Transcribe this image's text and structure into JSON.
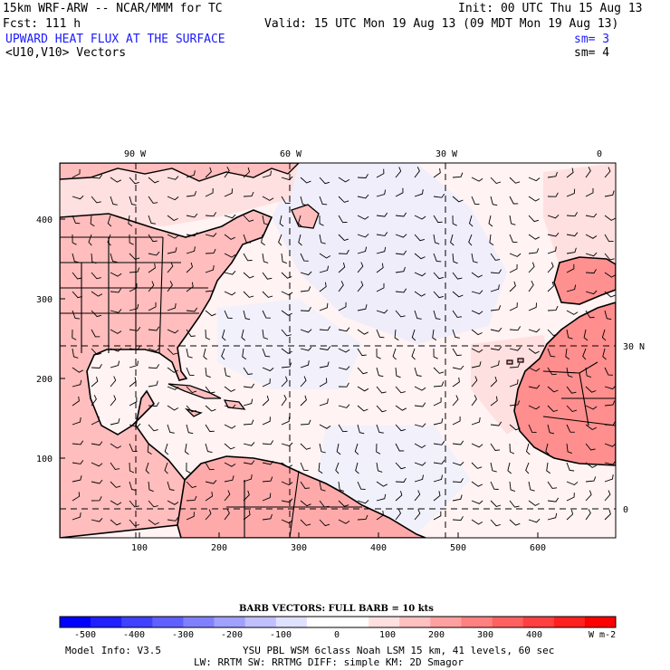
{
  "header": {
    "model_title": "15km WRF-ARW -- NCAR/MMM for TC",
    "init": "Init: 00 UTC Thu 15 Aug 13",
    "forecast": "Fcst:  111 h",
    "valid": "Valid: 15 UTC Mon 19 Aug 13 (09 MDT Mon 19 Aug 13)",
    "field_title": "UPWARD HEAT FLUX AT THE SURFACE",
    "field_sm": "sm= 3",
    "vector_title": "<U10,V10> Vectors",
    "vector_sm": "sm= 4"
  },
  "map": {
    "top_lon_labels": [
      "90 W",
      "60 W",
      "30 W",
      "0"
    ],
    "right_lat_labels": [
      "30 N",
      "0"
    ],
    "left_grid_labels": [
      "400",
      "300",
      "200",
      "100"
    ],
    "bottom_grid_labels": [
      "100",
      "200",
      "300",
      "400",
      "500",
      "600"
    ]
  },
  "colorbar": {
    "title": "BARB VECTORS:  FULL BARB = 10 kts",
    "tick_labels": [
      "-500",
      "-400",
      "-300",
      "-200",
      "-100",
      "0",
      "100",
      "200",
      "300",
      "400"
    ],
    "units": "W m-2",
    "colors": [
      "#0000ff",
      "#2020ff",
      "#4040ff",
      "#6060ff",
      "#8080ff",
      "#a0a0ff",
      "#c0c0ff",
      "#e0e0ff",
      "#ffffff",
      "#ffffff",
      "#ffe0e0",
      "#ffc0c0",
      "#ffa0a0",
      "#ff8080",
      "#ff6060",
      "#ff4040",
      "#ff2020",
      "#ff0000"
    ]
  },
  "footer": {
    "model_info": "Model Info: V3.5",
    "physics1": "YSU PBL  WSM 6class  Noah LSM  15 km,   41 levels,   60 sec",
    "physics2": "LW: RRTM SW: RRTMG   DIFF: simple KM: 2D Smagor"
  }
}
